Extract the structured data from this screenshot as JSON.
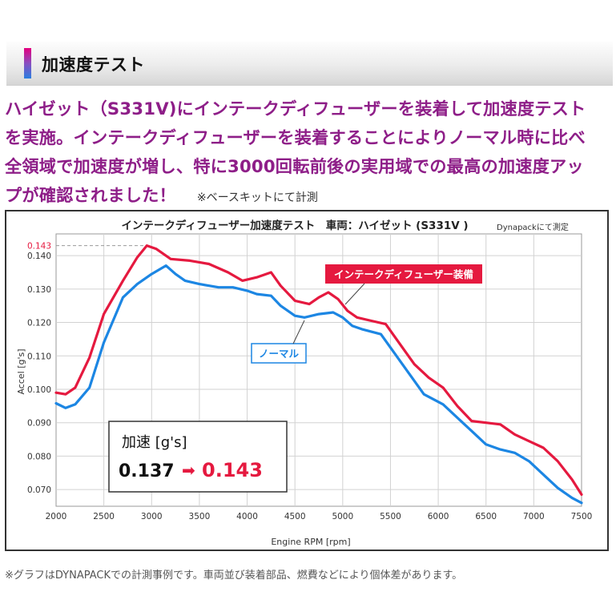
{
  "section": {
    "title": "加速度テスト"
  },
  "intro": {
    "line1": "ハイゼット（S331V)にインテークディフューザーを装着して加速度テスト",
    "line2": "を実施。インテークディフューザーを装着することによりノーマル時に比べ",
    "line3": "全領域で加速度が増し、特に3000回転前後の実用域での最高の加速度アッ",
    "line4": "プが確認されました！",
    "note": "※ベースキットにて計測"
  },
  "chart_data": {
    "type": "line",
    "title": "インテークディフューザー加速度テスト　車両：ハイゼット (S331V )",
    "note": "Dynapackにて測定",
    "xlabel": "Engine RPM [rpm]",
    "ylabel": "Accel [g's]",
    "xlim": [
      2000,
      7500
    ],
    "ylim": [
      0.065,
      0.1465
    ],
    "xticks": [
      "2000",
      "2500",
      "3000",
      "3500",
      "4000",
      "4500",
      "5000",
      "5500",
      "6000",
      "6500",
      "7000",
      "7500"
    ],
    "yticks": [
      "0.070",
      "0.080",
      "0.090",
      "0.100",
      "0.110",
      "0.120",
      "0.130",
      "0.140"
    ],
    "peak_label": "0.143",
    "grid": true,
    "series": [
      {
        "name": "インテークディフューザー装備",
        "color": "#e5193f",
        "x": [
          2000,
          2100,
          2200,
          2350,
          2500,
          2700,
          2850,
          2950,
          3050,
          3200,
          3400,
          3600,
          3800,
          3950,
          4100,
          4250,
          4350,
          4500,
          4650,
          4750,
          4850,
          4950,
          5050,
          5150,
          5300,
          5450,
          5600,
          5750,
          5900,
          6050,
          6200,
          6350,
          6500,
          6650,
          6800,
          6950,
          7100,
          7250,
          7400,
          7500
        ],
        "values": [
          0.099,
          0.0985,
          0.1005,
          0.1095,
          0.1225,
          0.1325,
          0.1395,
          0.143,
          0.142,
          0.139,
          0.1385,
          0.1375,
          0.135,
          0.1325,
          0.1335,
          0.135,
          0.131,
          0.1265,
          0.1255,
          0.1275,
          0.129,
          0.127,
          0.1235,
          0.1215,
          0.1205,
          0.1195,
          0.1135,
          0.1075,
          0.1035,
          0.1005,
          0.095,
          0.0905,
          0.09,
          0.0895,
          0.0865,
          0.0845,
          0.0825,
          0.0785,
          0.073,
          0.0685
        ]
      },
      {
        "name": "ノーマル",
        "color": "#1c86e3",
        "x": [
          2000,
          2100,
          2200,
          2350,
          2500,
          2700,
          2850,
          3000,
          3150,
          3250,
          3350,
          3500,
          3700,
          3850,
          4000,
          4100,
          4250,
          4350,
          4500,
          4600,
          4750,
          4900,
          5000,
          5100,
          5200,
          5400,
          5550,
          5700,
          5850,
          6050,
          6200,
          6350,
          6500,
          6650,
          6800,
          6950,
          7100,
          7250,
          7400,
          7500
        ],
        "values": [
          0.0958,
          0.0944,
          0.0955,
          0.1005,
          0.114,
          0.1275,
          0.1315,
          0.1345,
          0.137,
          0.1345,
          0.1325,
          0.1315,
          0.1305,
          0.1305,
          0.1295,
          0.1285,
          0.128,
          0.125,
          0.122,
          0.1215,
          0.1225,
          0.123,
          0.1215,
          0.119,
          0.118,
          0.1165,
          0.1105,
          0.1045,
          0.0985,
          0.0955,
          0.0915,
          0.0875,
          0.0835,
          0.082,
          0.081,
          0.0785,
          0.0745,
          0.0705,
          0.0675,
          0.066
        ]
      }
    ],
    "callout": {
      "label": "加速 [g's]",
      "before": "0.137",
      "arrow": "➡",
      "after": "0.143"
    }
  },
  "footnote": "※グラフはDYNAPACKでの計測事例です。車両並び装着部品、燃費などにより個体差があります。"
}
